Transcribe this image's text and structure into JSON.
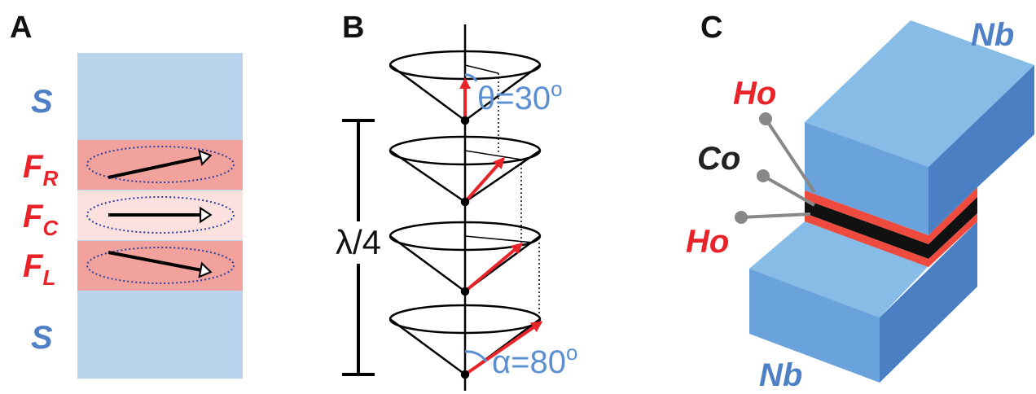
{
  "panel_a": {
    "label": "A",
    "layers": [
      {
        "text": "S"
      },
      {
        "main": "F",
        "sub": "R"
      },
      {
        "main": "F",
        "sub": "C"
      },
      {
        "main": "F",
        "sub": "L"
      },
      {
        "text": "S"
      }
    ]
  },
  "panel_b": {
    "label": "B",
    "period": "λ/4",
    "theta": {
      "text": "θ=30",
      "sup": "o"
    },
    "alpha": {
      "text": "α=80",
      "sup": "o"
    }
  },
  "panel_c": {
    "label": "C",
    "top": "Nb",
    "bottom": "Nb",
    "layers": [
      "Ho",
      "Co",
      "Ho"
    ]
  }
}
